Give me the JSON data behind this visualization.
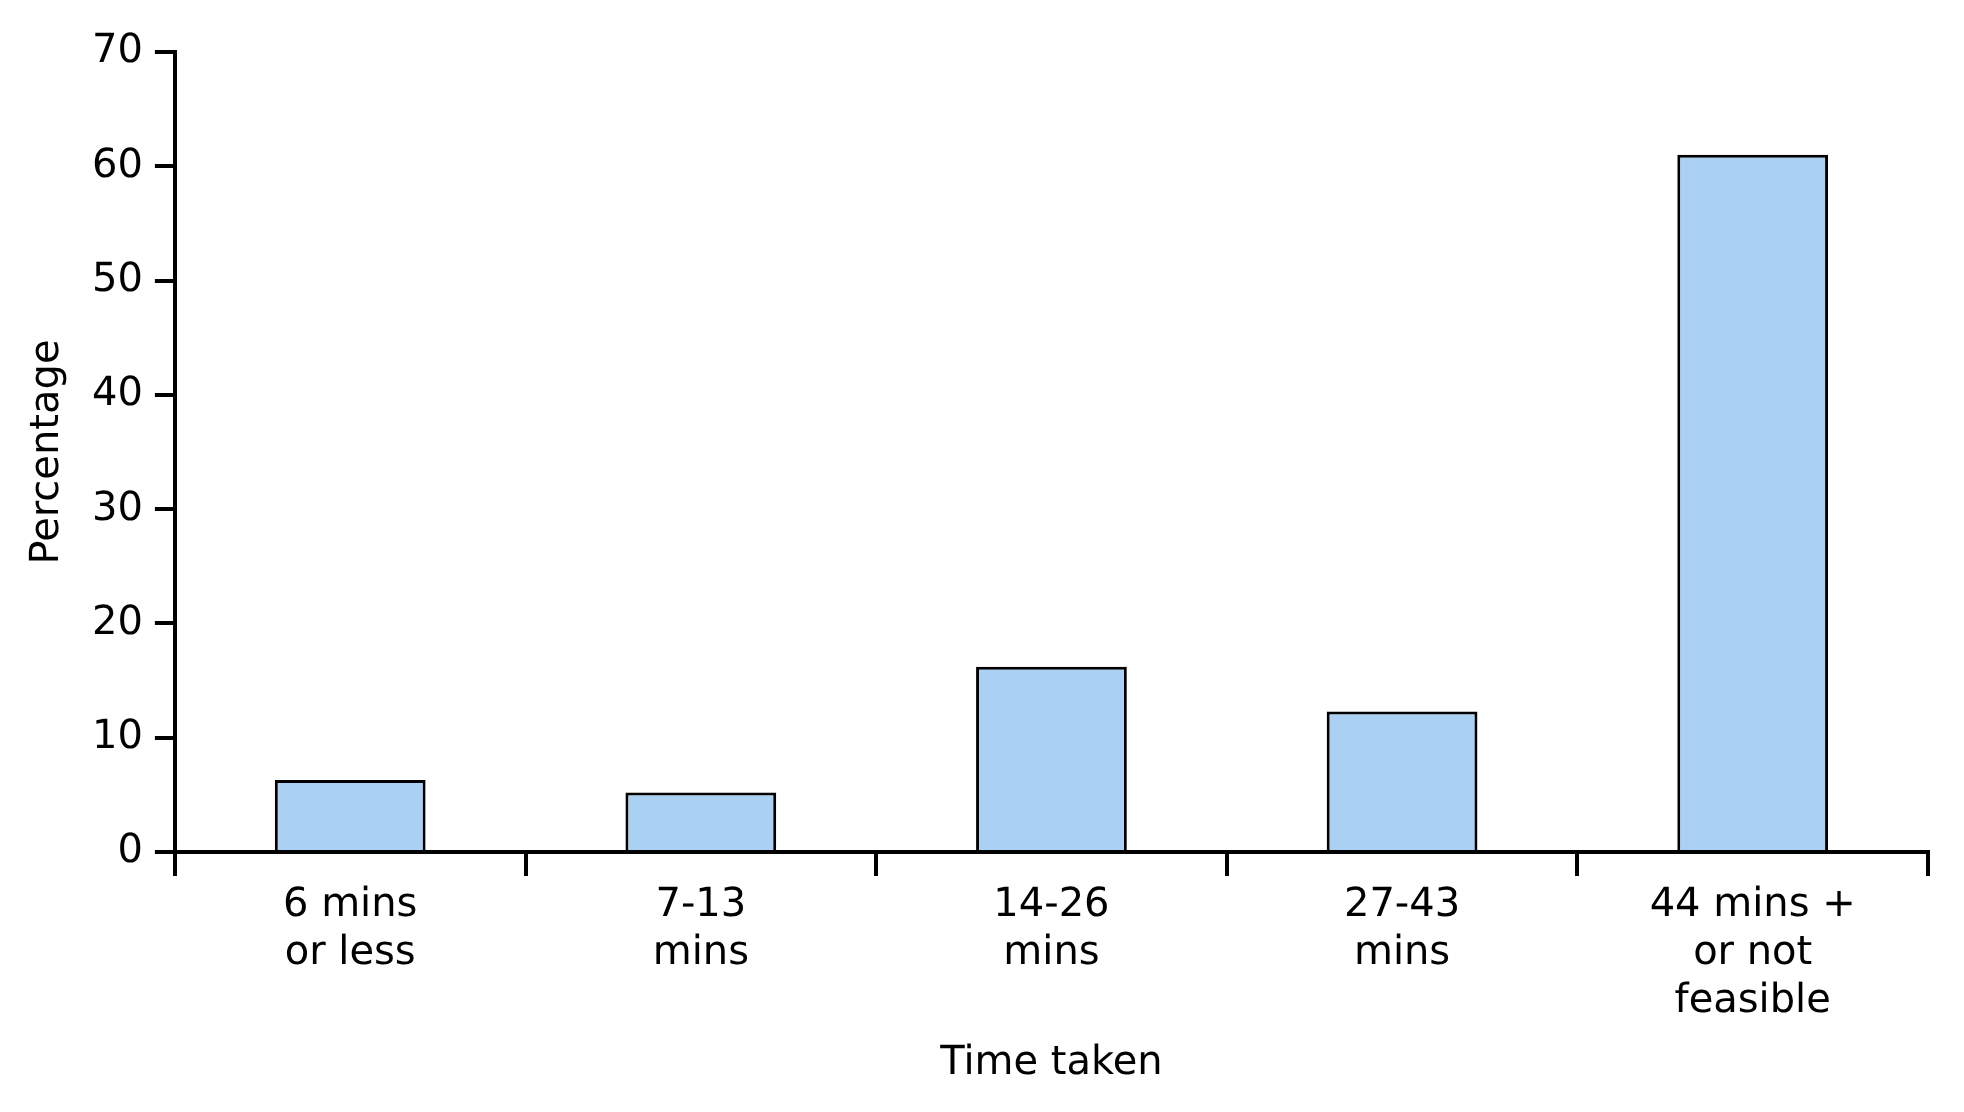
{
  "chart_data": {
    "type": "bar",
    "xlabel": "Time taken",
    "ylabel": "Percentage",
    "categories": [
      "6 mins\nor less",
      "7-13\nmins",
      "14-26\nmins",
      "27-43\nmins",
      "44 mins +\nor not\nfeasible"
    ],
    "values": [
      6.3,
      5.2,
      16.2,
      12.3,
      61
    ],
    "color": "#aad0f3",
    "ylim": [
      0,
      70
    ],
    "yticks": [
      0,
      10,
      20,
      30,
      40,
      50,
      60,
      70
    ],
    "grid": false,
    "legend": false
  }
}
